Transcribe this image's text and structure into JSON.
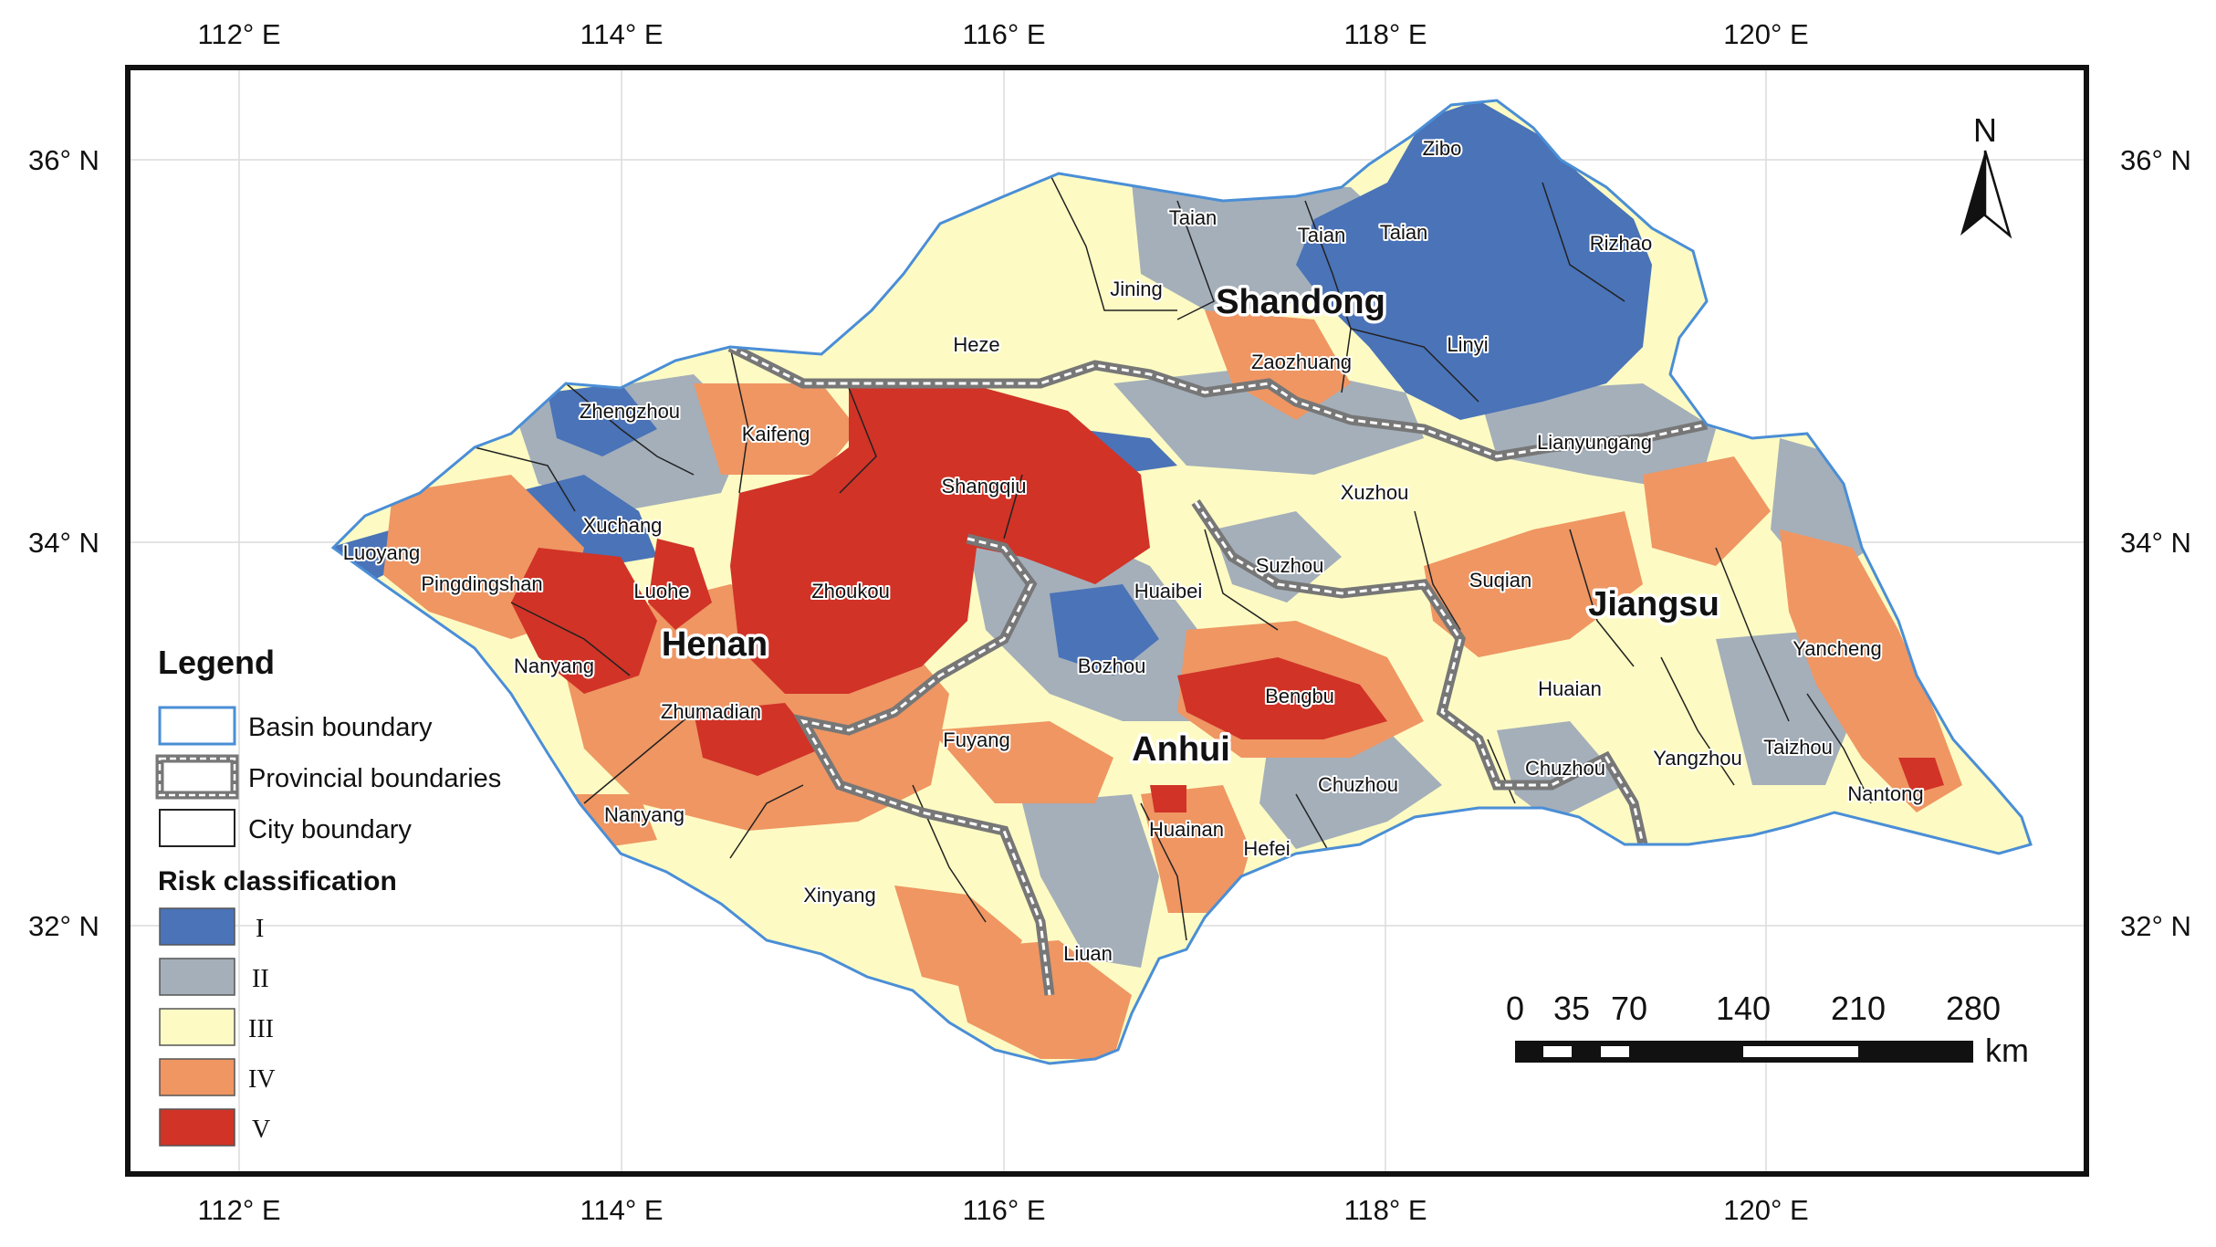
{
  "graticule": {
    "lon_labels": [
      "112° E",
      "114° E",
      "116° E",
      "118° E",
      "120° E"
    ],
    "lat_labels": [
      "36° N",
      "34° N",
      "32° N"
    ]
  },
  "north_arrow": {
    "label": "N"
  },
  "scale_bar": {
    "ticks": [
      "0",
      "35",
      "70",
      "140",
      "210",
      "280"
    ],
    "unit": "km"
  },
  "legend": {
    "title": "Legend",
    "boundaries": [
      "Basin boundary",
      "Provincial boundaries",
      "City boundary"
    ],
    "risk_title": "Risk classification",
    "risk_classes": [
      {
        "label": "I",
        "color": "#4a73b8"
      },
      {
        "label": "II",
        "color": "#a4afba"
      },
      {
        "label": "III",
        "color": "#fdfbc3"
      },
      {
        "label": "IV",
        "color": "#ef9663"
      },
      {
        "label": "V",
        "color": "#d13327"
      }
    ]
  },
  "provinces": [
    "Shandong",
    "Henan",
    "Anhui",
    "Jiangsu"
  ],
  "cities": [
    "Zibo",
    "Taian",
    "Taian",
    "Taian",
    "Rizhao",
    "Jining",
    "Heze",
    "Zaozhuang",
    "Linyi",
    "Zhengzhou",
    "Kaifeng",
    "Shangqiu",
    "Lianyungang",
    "Xuzhou",
    "Xuchang",
    "Luoyang",
    "Pingdingshan",
    "Luohe",
    "Zhoukou",
    "Huaibei",
    "Suzhou",
    "Suqian",
    "Bozhou",
    "Nanyang",
    "Zhumadian",
    "Bengbu",
    "Huaian",
    "Yancheng",
    "Fuyang",
    "Chuzhou",
    "Chuzhou",
    "Yangzhou",
    "Taizhou",
    "Nantong",
    "Nanyang",
    "Huainan",
    "Hefei",
    "Xinyang",
    "Liuan"
  ]
}
